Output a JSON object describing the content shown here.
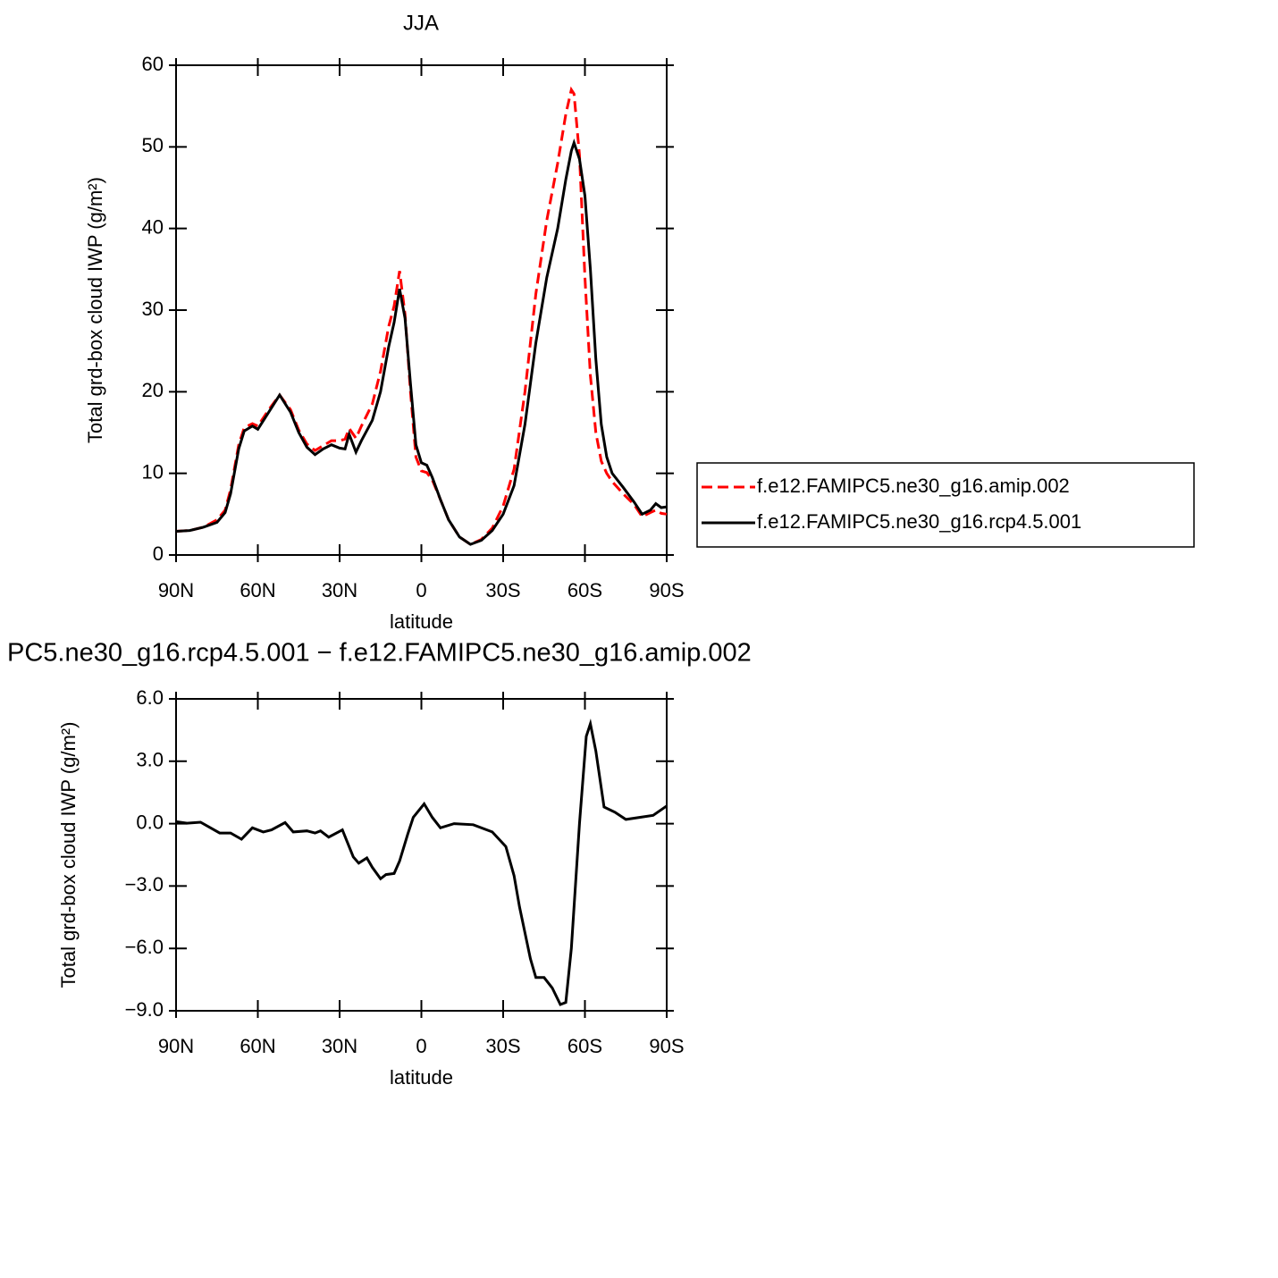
{
  "chart_data": [
    {
      "type": "line",
      "title": "JJA",
      "xlabel": "latitude",
      "ylabel": "Total grd-box cloud IWP (g/m²)",
      "x": [
        90,
        85,
        80,
        75,
        72,
        70,
        67,
        65,
        62,
        60,
        56,
        52,
        48,
        45,
        42,
        39,
        36,
        33,
        30,
        28,
        26.5,
        24,
        22,
        18,
        15,
        12,
        10,
        8,
        6,
        4,
        2,
        0,
        -2,
        -4,
        -7,
        -10,
        -14,
        -18,
        -22,
        -26,
        -30,
        -34,
        -38,
        -42,
        -46,
        -50,
        -53,
        -55,
        -56,
        -58,
        -60,
        -62,
        -64,
        -66,
        -68,
        -70,
        -74,
        -78,
        -81,
        -84,
        -86,
        -88,
        -90
      ],
      "xlim": [
        90,
        -90
      ],
      "xticks": [
        {
          "value": 90,
          "label": "90N"
        },
        {
          "value": 60,
          "label": "60N"
        },
        {
          "value": 30,
          "label": "30N"
        },
        0,
        {
          "value": -30,
          "label": "30S"
        },
        {
          "value": -60,
          "label": "60S"
        },
        {
          "value": -90,
          "label": "90S"
        }
      ],
      "ylim": [
        0,
        60
      ],
      "yticks": [
        0,
        10,
        20,
        30,
        40,
        50,
        60
      ],
      "grid": false,
      "legend": "right",
      "series": [
        {
          "name": "f.e12.FAMIPC5.ne30_g16.amip.002",
          "color": "#ff0000",
          "linestyle": "dashed",
          "values": [
            2.9,
            3.0,
            3.4,
            4.3,
            5.5,
            8,
            13.5,
            15.6,
            16.1,
            15.8,
            17.8,
            19.6,
            17.8,
            15.3,
            13.6,
            12.8,
            13.4,
            14.0,
            14.0,
            14.2,
            15.5,
            14.3,
            15.8,
            18.5,
            22.5,
            28,
            30.5,
            34.8,
            29.5,
            20,
            12,
            10.3,
            10.1,
            9.2,
            6.8,
            4.3,
            2.2,
            1.3,
            1.9,
            3.3,
            6,
            10.5,
            20,
            32,
            41,
            48,
            54,
            57,
            56.5,
            49,
            34,
            22,
            15,
            11.5,
            10,
            9,
            7.5,
            6.2,
            4.7,
            5.2,
            5.5,
            5.1,
            5.0
          ]
        },
        {
          "name": "f.e12.FAMIPC5.ne30_g16.rcp4.5.001",
          "color": "#000000",
          "linestyle": "solid",
          "values": [
            2.9,
            3.0,
            3.4,
            4.0,
            5.2,
            7.5,
            13,
            15.2,
            15.8,
            15.4,
            17.5,
            19.6,
            17.5,
            15,
            13.2,
            12.3,
            13.0,
            13.5,
            13.1,
            13.0,
            14.8,
            12.6,
            14.0,
            16.5,
            20,
            25.5,
            28.5,
            32.6,
            29,
            21,
            13.5,
            11.3,
            11.0,
            9.5,
            6.8,
            4.3,
            2.2,
            1.3,
            1.8,
            3.0,
            5.0,
            8.5,
            16,
            26,
            34,
            40,
            46,
            49.5,
            50.5,
            48.5,
            44,
            35,
            24,
            16,
            12,
            10,
            8.3,
            6.5,
            5.0,
            5.5,
            6.3,
            5.8,
            5.9
          ]
        }
      ]
    },
    {
      "type": "line",
      "title": "PC5.ne30_g16.rcp4.5.001 − f.e12.FAMIPC5.ne30_g16.amip.002",
      "xlabel": "latitude",
      "ylabel": "Total grd-box cloud IWP (g/m²)",
      "x": [
        90,
        86,
        81,
        74,
        70,
        66,
        62,
        58,
        55,
        50,
        47,
        42,
        39,
        37,
        34,
        29,
        25,
        23,
        20,
        18,
        15,
        13,
        10,
        8,
        5,
        3,
        -1,
        -4,
        -7,
        -12,
        -19,
        -26,
        -31,
        -34,
        -36,
        -40,
        -42,
        -45,
        -48,
        -51,
        -53,
        -55,
        -58,
        -60.5,
        -62,
        -64,
        -67,
        -71,
        -75,
        -80,
        -85,
        -90
      ],
      "xlim": [
        90,
        -90
      ],
      "xticks": [
        {
          "value": 90,
          "label": "90N"
        },
        {
          "value": 60,
          "label": "60N"
        },
        {
          "value": 30,
          "label": "30N"
        },
        0,
        {
          "value": -30,
          "label": "30S"
        },
        {
          "value": -60,
          "label": "60S"
        },
        {
          "value": -90,
          "label": "90S"
        }
      ],
      "ylim": [
        -9,
        6
      ],
      "yticks": [
        {
          "value": 6,
          "label": "6.0"
        },
        {
          "value": 3,
          "label": "3.0"
        },
        {
          "value": 0,
          "label": "0.0"
        },
        {
          "value": -3,
          "label": "−3.0"
        },
        {
          "value": -6,
          "label": "−6.0"
        },
        {
          "value": -9,
          "label": "−9.0"
        }
      ],
      "grid": false,
      "series": [
        {
          "color": "#000000",
          "linestyle": "solid",
          "values": [
            0.1,
            0.02,
            0.07,
            -0.45,
            -0.45,
            -0.75,
            -0.2,
            -0.4,
            -0.3,
            0.05,
            -0.4,
            -0.35,
            -0.45,
            -0.35,
            -0.65,
            -0.3,
            -1.6,
            -1.9,
            -1.65,
            -2.1,
            -2.65,
            -2.45,
            -2.4,
            -1.8,
            -0.5,
            0.3,
            0.95,
            0.3,
            -0.2,
            0.0,
            -0.05,
            -0.4,
            -1.1,
            -2.5,
            -4.0,
            -6.5,
            -7.4,
            -7.4,
            -7.9,
            -8.7,
            -8.6,
            -6.0,
            0.0,
            4.2,
            4.8,
            3.5,
            0.8,
            0.55,
            0.2,
            0.3,
            0.4,
            0.85
          ]
        }
      ]
    }
  ]
}
